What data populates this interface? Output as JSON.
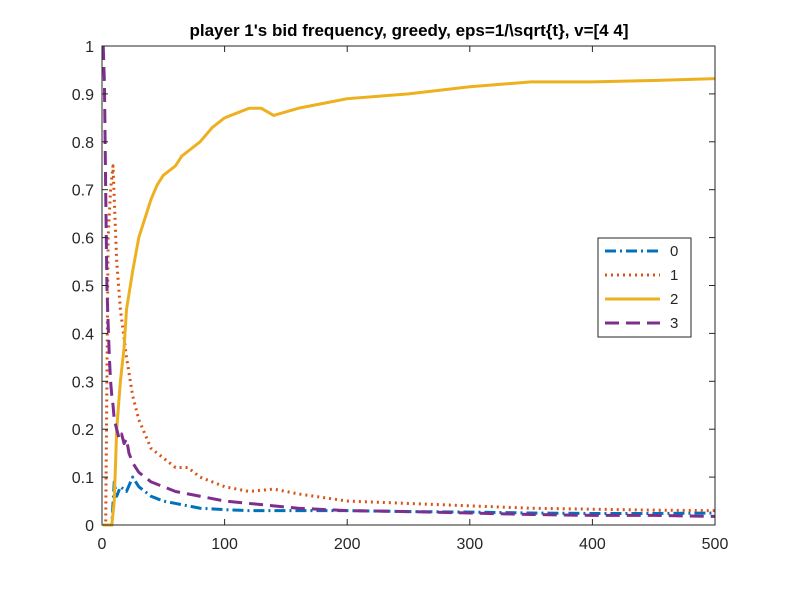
{
  "chart_data": {
    "type": "line",
    "title": "player 1's bid frequency, greedy, eps=1/\\sqrt{t}, v=[4 4]",
    "xlabel": "",
    "ylabel": "",
    "xlim": [
      0,
      500
    ],
    "ylim": [
      0,
      1
    ],
    "x_ticks": [
      0,
      100,
      200,
      300,
      400,
      500
    ],
    "y_ticks": [
      0,
      0.1,
      0.2,
      0.3,
      0.4,
      0.5,
      0.6,
      0.7,
      0.8,
      0.9,
      1
    ],
    "x_tick_labels": [
      "0",
      "100",
      "200",
      "300",
      "400",
      "500"
    ],
    "y_tick_labels": [
      "0",
      "0.1",
      "0.2",
      "0.3",
      "0.4",
      "0.5",
      "0.6",
      "0.7",
      "0.8",
      "0.9",
      "1"
    ],
    "grid": false,
    "legend_position": "right",
    "series": [
      {
        "name": "0",
        "color": "#0072BD",
        "dash": "dash-dot",
        "x": [
          1,
          4,
          8,
          10,
          12,
          15,
          20,
          25,
          30,
          40,
          50,
          60,
          70,
          80,
          100,
          120,
          140,
          160,
          200,
          250,
          300,
          350,
          400,
          450,
          500
        ],
        "y": [
          0,
          0,
          0,
          0.09,
          0.06,
          0.08,
          0.07,
          0.1,
          0.08,
          0.06,
          0.05,
          0.045,
          0.04,
          0.035,
          0.032,
          0.03,
          0.03,
          0.03,
          0.03,
          0.028,
          0.027,
          0.025,
          0.024,
          0.024,
          0.025
        ]
      },
      {
        "name": "1",
        "color": "#D95319",
        "dash": "dotted",
        "x": [
          1,
          3,
          5,
          7,
          9,
          10,
          12,
          15,
          20,
          25,
          30,
          35,
          40,
          50,
          60,
          70,
          80,
          90,
          100,
          120,
          140,
          160,
          200,
          250,
          300,
          350,
          400,
          450,
          500
        ],
        "y": [
          0,
          0,
          0.6,
          0.7,
          0.75,
          0.68,
          0.55,
          0.45,
          0.35,
          0.27,
          0.22,
          0.19,
          0.16,
          0.14,
          0.12,
          0.12,
          0.1,
          0.09,
          0.08,
          0.07,
          0.075,
          0.065,
          0.05,
          0.045,
          0.04,
          0.035,
          0.033,
          0.031,
          0.03
        ]
      },
      {
        "name": "2",
        "color": "#EDB120",
        "dash": "solid",
        "x": [
          1,
          8,
          10,
          12,
          15,
          18,
          20,
          25,
          30,
          35,
          40,
          45,
          50,
          55,
          60,
          65,
          70,
          80,
          90,
          100,
          110,
          120,
          130,
          140,
          160,
          180,
          200,
          250,
          300,
          350,
          400,
          450,
          500
        ],
        "y": [
          0,
          0,
          0.05,
          0.2,
          0.3,
          0.37,
          0.45,
          0.53,
          0.6,
          0.64,
          0.68,
          0.71,
          0.73,
          0.74,
          0.75,
          0.77,
          0.78,
          0.8,
          0.83,
          0.85,
          0.86,
          0.87,
          0.87,
          0.855,
          0.87,
          0.88,
          0.89,
          0.9,
          0.915,
          0.925,
          0.925,
          0.928,
          0.932
        ]
      },
      {
        "name": "3",
        "color": "#7E2F8E",
        "dash": "dashed",
        "x": [
          1,
          2,
          3,
          4,
          5,
          6,
          7,
          8,
          9,
          10,
          12,
          14,
          16,
          18,
          20,
          22,
          25,
          30,
          35,
          40,
          50,
          60,
          70,
          80,
          100,
          120,
          140,
          160,
          200,
          250,
          300,
          350,
          400,
          450,
          500
        ],
        "y": [
          1,
          0.92,
          0.7,
          0.5,
          0.42,
          0.35,
          0.3,
          0.27,
          0.25,
          0.22,
          0.2,
          0.18,
          0.19,
          0.17,
          0.18,
          0.15,
          0.13,
          0.11,
          0.1,
          0.09,
          0.08,
          0.07,
          0.065,
          0.06,
          0.05,
          0.045,
          0.04,
          0.035,
          0.03,
          0.028,
          0.025,
          0.022,
          0.02,
          0.02,
          0.018
        ]
      }
    ]
  }
}
